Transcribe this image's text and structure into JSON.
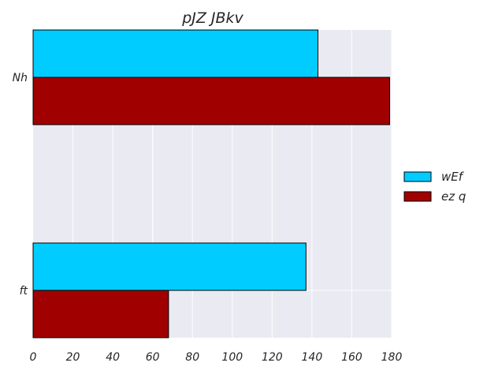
{
  "chart_data": {
    "type": "bar",
    "orientation": "horizontal",
    "title": "pJZ JBkv",
    "xlabel": "",
    "ylabel": "",
    "categories": [
      "Nh",
      "ft"
    ],
    "series": [
      {
        "name": "wEf",
        "values": [
          143,
          137
        ],
        "color": "#00ccff"
      },
      {
        "name": "ez q",
        "values": [
          179,
          68
        ],
        "color": "#a10000"
      }
    ],
    "xlim": [
      0,
      180
    ],
    "xticks": [
      0,
      20,
      40,
      60,
      80,
      100,
      120,
      140,
      160,
      180
    ],
    "grid": true,
    "legend_position": "right"
  },
  "colors": {
    "plot_background": "#eaeaf2",
    "grid": "#ffffff",
    "bar_edge": "#000000"
  }
}
